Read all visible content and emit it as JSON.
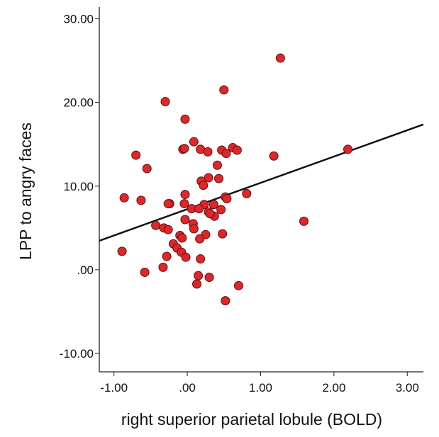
{
  "chart_data": {
    "type": "scatter",
    "x_label": "right superior parietal lobule  (BOLD)",
    "y_label": "LPP to angry faces",
    "xlim": [
      -1.2,
      3.22
    ],
    "ylim": [
      -12.2,
      31.4
    ],
    "xticks": [
      {
        "value": -1,
        "label": "-1.00"
      },
      {
        "value": 0,
        "label": ".00"
      },
      {
        "value": 1,
        "label": "1.00"
      },
      {
        "value": 2,
        "label": "2.00"
      },
      {
        "value": 3,
        "label": "3.00"
      }
    ],
    "yticks": [
      {
        "value": -10,
        "label": "-10.00"
      },
      {
        "value": 0,
        "label": ".00"
      },
      {
        "value": 10,
        "label": "10.00"
      },
      {
        "value": 20,
        "label": "20.00"
      },
      {
        "value": 30,
        "label": "30.00"
      }
    ],
    "color": "#e0262b",
    "x": [
      1.27,
      0.5,
      -0.3,
      -0.03,
      0.09,
      -0.06,
      -0.04,
      0.18,
      0.28,
      0.47,
      0.53,
      0.62,
      0.68,
      1.18,
      2.19,
      -0.7,
      -0.55,
      0.41,
      0.29,
      0.43,
      0.19,
      0.22,
      -0.86,
      -0.63,
      -0.03,
      0.81,
      0.52,
      0.54,
      -0.24,
      -0.26,
      -0.04,
      0.23,
      0.36,
      0.06,
      0.16,
      0.29,
      0.46,
      0.37,
      0.31,
      -0.03,
      0.08,
      0.09,
      -0.43,
      -0.32,
      -0.26,
      -0.1,
      -0.07,
      0.25,
      0.48,
      0.17,
      1.59,
      -0.19,
      -0.14,
      -0.89,
      -0.08,
      -0.28,
      -0.02,
      0.18,
      -0.33,
      -0.58,
      0.15,
      0.3,
      0.13,
      0.7,
      0.52
    ],
    "y": [
      25.3,
      21.5,
      20.1,
      18.0,
      15.3,
      14.4,
      14.5,
      14.4,
      14.1,
      14.3,
      13.9,
      14.6,
      14.3,
      13.6,
      14.4,
      13.7,
      12.1,
      12.5,
      11.0,
      10.9,
      10.6,
      10.1,
      8.6,
      8.3,
      9.0,
      9.1,
      8.7,
      8.5,
      7.9,
      7.9,
      7.9,
      7.8,
      7.8,
      7.3,
      7.3,
      6.9,
      7.2,
      6.4,
      6.7,
      6.0,
      5.5,
      4.9,
      5.3,
      5.0,
      4.8,
      4.1,
      3.8,
      4.2,
      4.3,
      3.7,
      5.8,
      3.1,
      2.6,
      2.2,
      2.1,
      1.6,
      1.5,
      1.3,
      0.3,
      -0.3,
      -0.7,
      -0.9,
      -1.7,
      -1.9,
      -3.7
    ],
    "regression_line": {
      "x": [
        -1.2,
        3.22
      ],
      "y": [
        3.47,
        17.37
      ]
    }
  }
}
